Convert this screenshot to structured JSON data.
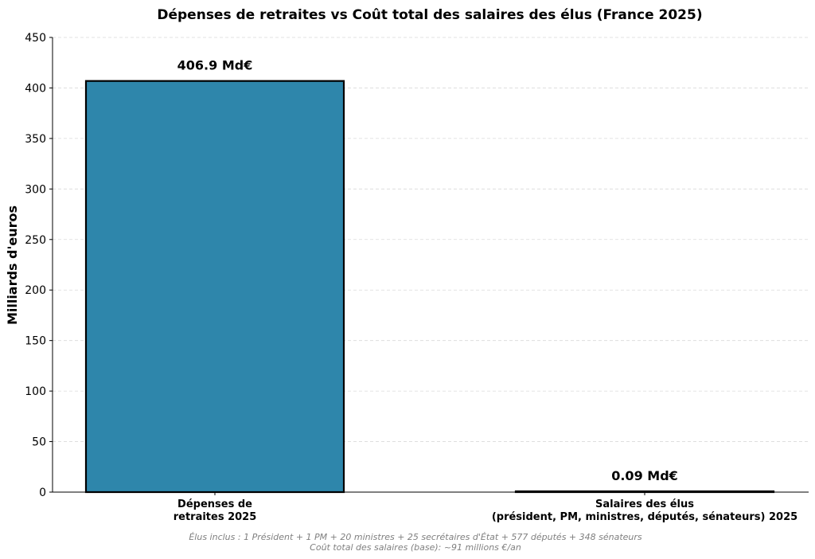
{
  "chart_data": {
    "type": "bar",
    "title": "Dépenses de retraites vs Coût total des salaires des élus (France 2025)",
    "xlabel": "",
    "ylabel": "Milliards d'euros",
    "ylim": [
      0,
      450
    ],
    "yticks": [
      0,
      50,
      100,
      150,
      200,
      250,
      300,
      350,
      400,
      450
    ],
    "grid": "y-dashed",
    "categories": [
      [
        "Dépenses de",
        "retraites 2025"
      ],
      [
        "Salaires des élus",
        "(président, PM, ministres, députés, sénateurs) 2025"
      ]
    ],
    "values": [
      406.9,
      0.09
    ],
    "data_labels": [
      "406.9 Md€",
      "0.09 Md€"
    ],
    "colors": [
      "#2e86ab",
      "#a23b72"
    ],
    "edge_color": "#000000"
  },
  "footnote": {
    "line1": "Élus inclus : 1 Président + 1 PM + 20 ministres + 25 secrétaires d'État + 577 députés + 348 sénateurs",
    "line2": "Coût total des salaires (base): ~91 millions €/an"
  }
}
